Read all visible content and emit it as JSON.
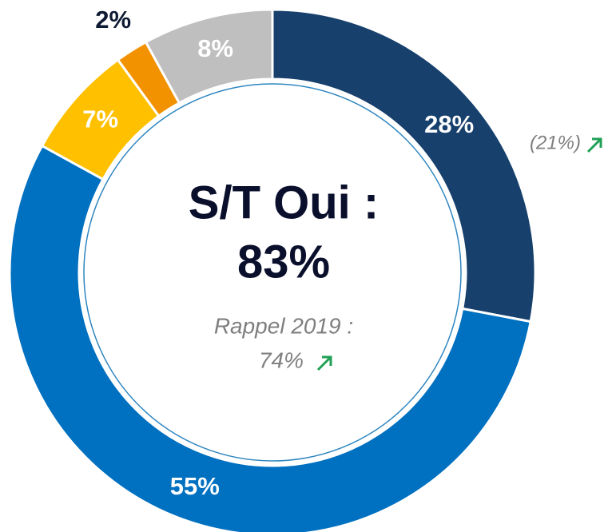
{
  "chart_data": {
    "type": "pie",
    "values": [
      28,
      55,
      7,
      2,
      8
    ],
    "value_labels": [
      "28%",
      "55%",
      "7%",
      "2%",
      "8%"
    ],
    "colors": [
      "#17406d",
      "#0070c0",
      "#ffc000",
      "#f39200",
      "#bfbfbf"
    ],
    "center_title": "S/T Oui :",
    "center_value": "83%",
    "center_note": "Rappel 2019 :",
    "center_note_value": "74%",
    "annotation": "(21%)"
  }
}
